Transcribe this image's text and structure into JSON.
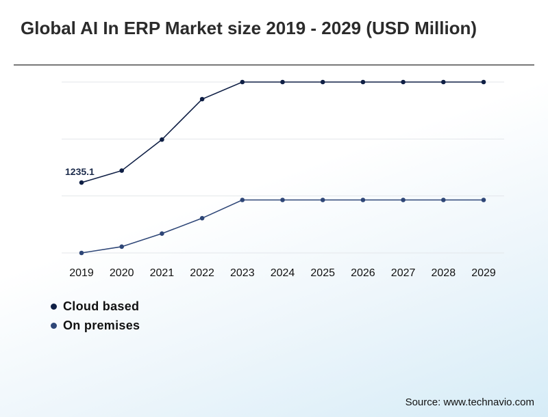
{
  "title": "Global AI In ERP Market size 2019 - 2029 (USD Million)",
  "source": "Source: www.technavio.com",
  "colors": {
    "cloud": "#0f1f45",
    "premises": "#2e4677",
    "grid": "#e3e6ea"
  },
  "chart_data": {
    "type": "line",
    "title": "Global AI In ERP Market size 2019 - 2029 (USD Million)",
    "x": [
      "2019",
      "2020",
      "2021",
      "2022",
      "2023",
      "2024",
      "2025",
      "2026",
      "2027",
      "2028",
      "2029"
    ],
    "ylim": [
      0,
      3000
    ],
    "grid": true,
    "legend_position": "bottom-left",
    "series": [
      {
        "name": "Cloud based",
        "color": "#0f1f45",
        "values": [
          1235.1,
          1445,
          1990,
          2700,
          3000,
          3000,
          3000,
          3000,
          3000,
          3000,
          3000
        ]
      },
      {
        "name": "On premises",
        "color": "#2e4677",
        "values": [
          0,
          110,
          340,
          610,
          930,
          930,
          930,
          930,
          930,
          930,
          930
        ]
      }
    ],
    "annotations": [
      {
        "series": 0,
        "index": 0,
        "text": "1235.1"
      }
    ]
  }
}
